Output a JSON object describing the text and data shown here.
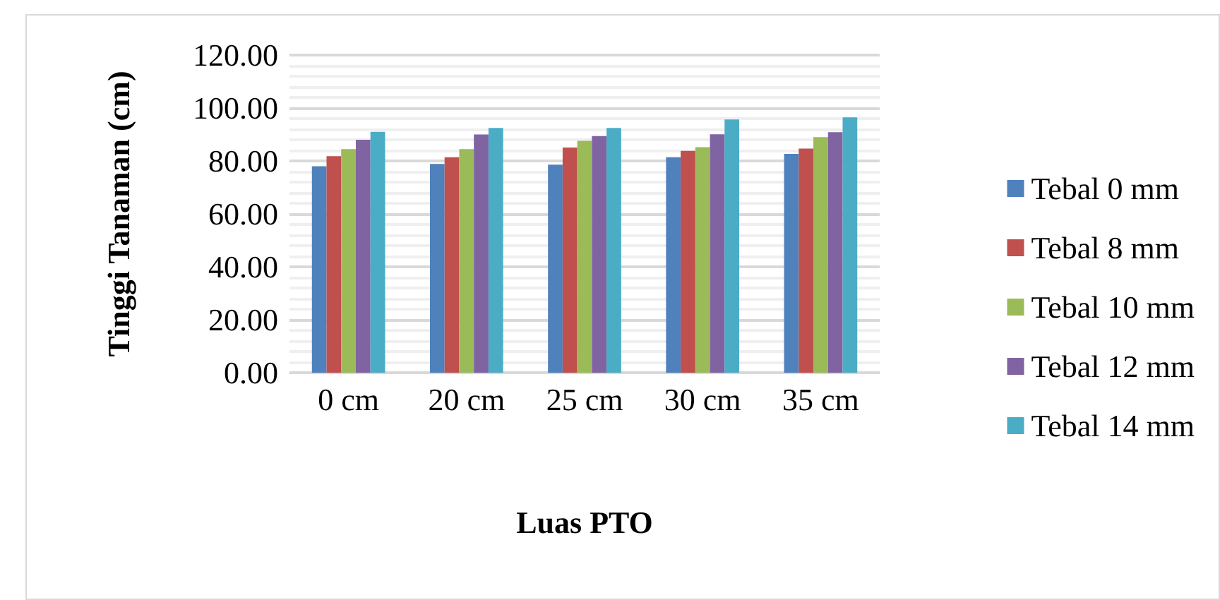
{
  "chart_data": {
    "type": "bar",
    "xlabel": "Luas PTO",
    "ylabel": "Tinggi Tanaman (cm)",
    "categories": [
      "0 cm",
      "20 cm",
      "25 cm",
      "30 cm",
      "35 cm"
    ],
    "series": [
      {
        "name": "Tebal 0 mm",
        "color": "#4f81bd",
        "values": [
          78.0,
          78.9,
          78.6,
          81.4,
          82.7
        ]
      },
      {
        "name": "Tebal 8 mm",
        "color": "#c0504d",
        "values": [
          81.8,
          81.4,
          85.1,
          83.8,
          84.7
        ]
      },
      {
        "name": "Tebal 10 mm",
        "color": "#9bbb59",
        "values": [
          84.5,
          84.5,
          87.6,
          85.2,
          89.0
        ]
      },
      {
        "name": "Tebal 12 mm",
        "color": "#8064a2",
        "values": [
          88.0,
          90.0,
          89.4,
          90.1,
          90.9
        ]
      },
      {
        "name": "Tebal 14 mm",
        "color": "#4bacc6",
        "values": [
          91.0,
          92.5,
          92.5,
          95.7,
          96.5
        ]
      }
    ],
    "ylim": [
      0,
      120
    ],
    "yticks": [
      {
        "value": 0,
        "label": "0.00"
      },
      {
        "value": 20,
        "label": "20.00"
      },
      {
        "value": 40,
        "label": "40.00"
      },
      {
        "value": 60,
        "label": "60.00"
      },
      {
        "value": 80,
        "label": "80.00"
      },
      {
        "value": 100,
        "label": "100.00"
      },
      {
        "value": 120,
        "label": "120.00"
      }
    ],
    "grid": true,
    "legend": "right"
  }
}
